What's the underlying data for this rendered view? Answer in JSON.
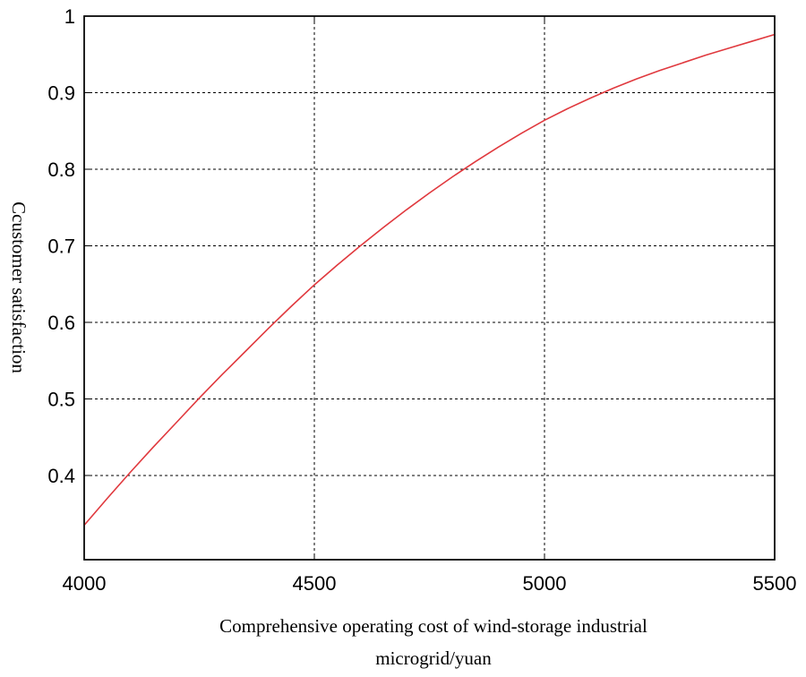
{
  "chart_data": {
    "type": "line",
    "title": "",
    "xlabel_lines": [
      "Comprehensive operating cost of wind-storage industrial",
      "microgrid/yuan"
    ],
    "ylabel": "Ccustomer satisfaction",
    "xlim": [
      4000,
      5500
    ],
    "ylim": [
      0.29,
      1.0
    ],
    "xticks": [
      4000,
      4500,
      5000,
      5500
    ],
    "xtick_labels": [
      "4000",
      "4500",
      "5000",
      "5500"
    ],
    "yticks": [
      0.4,
      0.5,
      0.6,
      0.7,
      0.8,
      0.9,
      1.0
    ],
    "ytick_labels": [
      "0.4",
      "0.5",
      "0.6",
      "0.7",
      "0.8",
      "0.9",
      "1"
    ],
    "grid": true,
    "series": [
      {
        "color": "#e0393e",
        "x": [
          4000,
          4050,
          4100,
          4150,
          4200,
          4250,
          4300,
          4350,
          4400,
          4450,
          4500,
          4550,
          4600,
          4650,
          4700,
          4750,
          4800,
          4850,
          4900,
          4950,
          5000,
          5050,
          5100,
          5150,
          5200,
          5250,
          5300,
          5350,
          5400,
          5450,
          5500
        ],
        "y": [
          0.335,
          0.37,
          0.404,
          0.437,
          0.469,
          0.501,
          0.532,
          0.562,
          0.592,
          0.621,
          0.649,
          0.675,
          0.7,
          0.724,
          0.747,
          0.769,
          0.79,
          0.81,
          0.829,
          0.847,
          0.864,
          0.879,
          0.893,
          0.906,
          0.918,
          0.929,
          0.939,
          0.949,
          0.958,
          0.967,
          0.976
        ]
      }
    ]
  }
}
